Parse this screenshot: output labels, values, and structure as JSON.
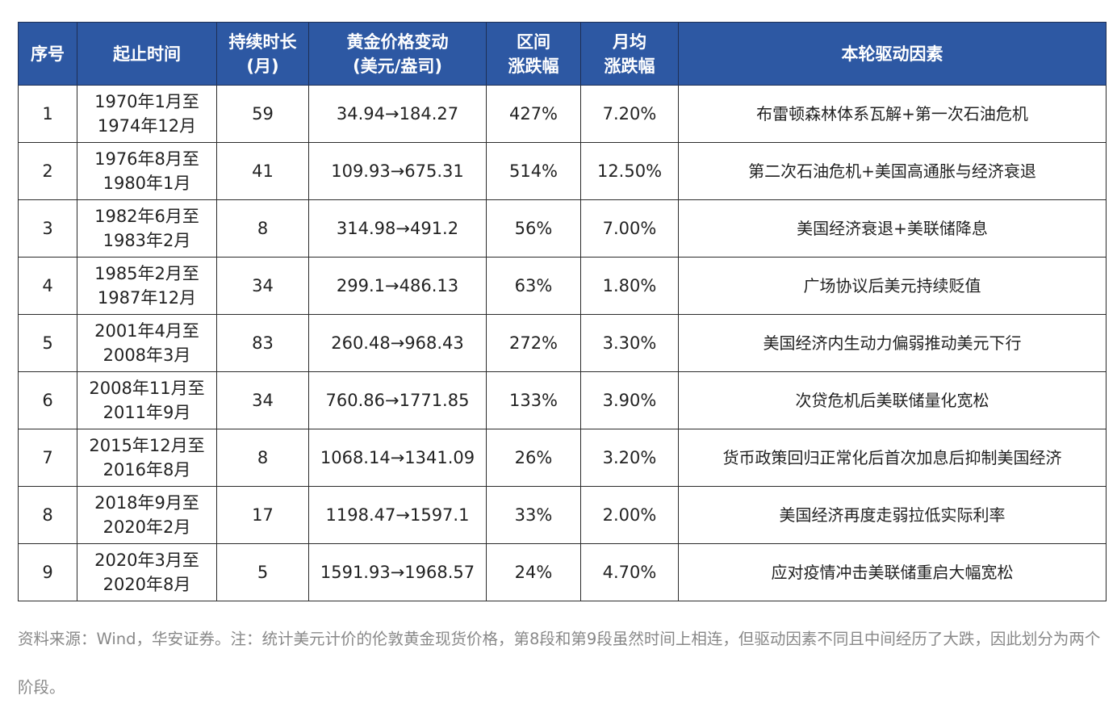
{
  "table": {
    "headers": [
      "序号",
      "起止时间",
      "持续时长\n(月)",
      "黄金价格变动\n(美元/盎司)",
      "区间\n涨跌幅",
      "月均\n涨跌幅",
      "本轮驱动因素"
    ],
    "rows": [
      [
        "1",
        "1970年1月至\n1974年12月",
        "59",
        "34.94→184.27",
        "427%",
        "7.20%",
        "布雷顿森林体系瓦解+第一次石油危机"
      ],
      [
        "2",
        "1976年8月至\n1980年1月",
        "41",
        "109.93→675.31",
        "514%",
        "12.50%",
        "第二次石油危机+美国高通胀与经济衰退"
      ],
      [
        "3",
        "1982年6月至\n1983年2月",
        "8",
        "314.98→491.2",
        "56%",
        "7.00%",
        "美国经济衰退+美联储降息"
      ],
      [
        "4",
        "1985年2月至\n1987年12月",
        "34",
        "299.1→486.13",
        "63%",
        "1.80%",
        "广场协议后美元持续贬值"
      ],
      [
        "5",
        "2001年4月至\n2008年3月",
        "83",
        "260.48→968.43",
        "272%",
        "3.30%",
        "美国经济内生动力偏弱推动美元下行"
      ],
      [
        "6",
        "2008年11月至\n2011年9月",
        "34",
        "760.86→1771.85",
        "133%",
        "3.90%",
        "次贷危机后美联储量化宽松"
      ],
      [
        "7",
        "2015年12月至\n2016年8月",
        "8",
        "1068.14→1341.09",
        "26%",
        "3.20%",
        "货币政策回归正常化后首次加息后抑制美国经济"
      ],
      [
        "8",
        "2018年9月至\n2020年2月",
        "17",
        "1198.47→1597.1",
        "33%",
        "2.00%",
        "美国经济再度走弱拉低实际利率"
      ],
      [
        "9",
        "2020年3月至\n2020年8月",
        "5",
        "1591.93→1968.57",
        "24%",
        "4.70%",
        "应对疫情冲击美联储重启大幅宽松"
      ]
    ]
  },
  "note": "资料来源：Wind，华安证券。注：统计美元计价的伦敦黄金现货价格，第8段和第9段虽然时间上相连，但驱动因素不同且中间经历了大跌，因此划分为两个阶段。",
  "colors": {
    "header_bg": "#2d58a3",
    "header_text": "#ffffff",
    "note_text": "#888888"
  }
}
